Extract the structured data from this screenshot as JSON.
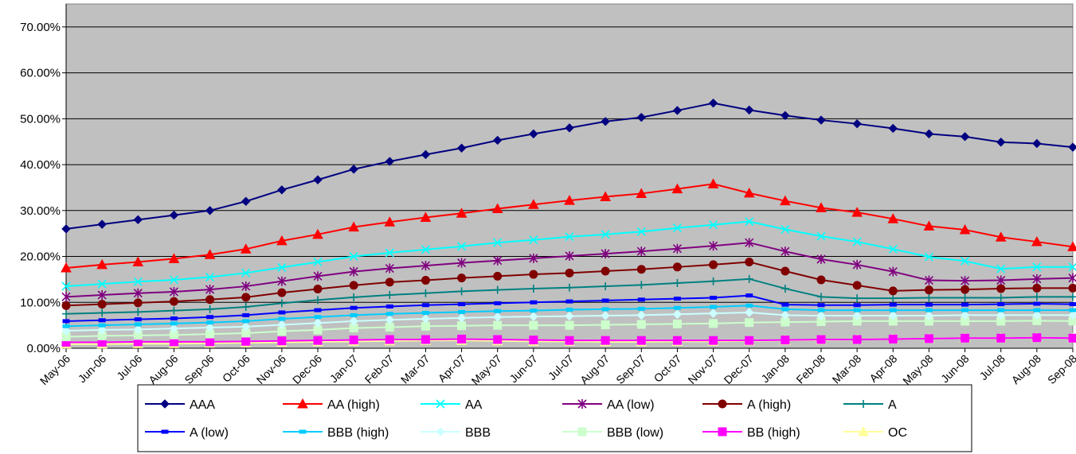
{
  "chart_data": {
    "type": "line",
    "title": "",
    "xlabel": "",
    "ylabel": "",
    "ylim": [
      0,
      0.75
    ],
    "y_tick_values": [
      0,
      0.1,
      0.2,
      0.3,
      0.4,
      0.5,
      0.6,
      0.7
    ],
    "y_tick_labels": [
      "0.00%",
      "10.00%",
      "20.00%",
      "30.00%",
      "40.00%",
      "50.00%",
      "60.00%",
      "70.00%"
    ],
    "grid": "horizontal",
    "plot_background": "#c0c0c0",
    "legend_position": "bottom",
    "categories": [
      "May-06",
      "Jun-06",
      "Jul-06",
      "Aug-06",
      "Sep-06",
      "Oct-06",
      "Nov-06",
      "Dec-06",
      "Jan-07",
      "Feb-07",
      "Mar-07",
      "Apr-07",
      "May-07",
      "Jun-07",
      "Jul-07",
      "Aug-07",
      "Sep-07",
      "Oct-07",
      "Nov-07",
      "Dec-07",
      "Jan-08",
      "Feb-08",
      "Mar-08",
      "Apr-08",
      "May-08",
      "Jun-08",
      "Jul-08",
      "Aug-08",
      "Sep-08"
    ],
    "series": [
      {
        "name": "AAA",
        "color": "#000080",
        "marker": "diamond",
        "values": [
          0.26,
          0.27,
          0.28,
          0.29,
          0.3,
          0.32,
          0.345,
          0.367,
          0.39,
          0.407,
          0.422,
          0.436,
          0.453,
          0.467,
          0.48,
          0.494,
          0.503,
          0.518,
          0.534,
          0.519,
          0.507,
          0.497,
          0.489,
          0.479,
          0.467,
          0.461,
          0.449,
          0.446,
          0.438
        ]
      },
      {
        "name": "AA (high)",
        "color": "#ff0000",
        "marker": "triangle",
        "values": [
          0.175,
          0.182,
          0.188,
          0.195,
          0.204,
          0.216,
          0.234,
          0.248,
          0.264,
          0.275,
          0.285,
          0.294,
          0.304,
          0.313,
          0.322,
          0.33,
          0.337,
          0.347,
          0.358,
          0.338,
          0.321,
          0.306,
          0.296,
          0.282,
          0.266,
          0.258,
          0.242,
          0.232,
          0.221
        ]
      },
      {
        "name": "AA",
        "color": "#00ffff",
        "marker": "x",
        "values": [
          0.135,
          0.14,
          0.145,
          0.149,
          0.155,
          0.164,
          0.176,
          0.188,
          0.2,
          0.208,
          0.215,
          0.222,
          0.23,
          0.236,
          0.243,
          0.248,
          0.254,
          0.262,
          0.269,
          0.276,
          0.259,
          0.244,
          0.232,
          0.216,
          0.199,
          0.19,
          0.173,
          0.177,
          0.177
        ]
      },
      {
        "name": "AA (low)",
        "color": "#800080",
        "marker": "star",
        "values": [
          0.112,
          0.116,
          0.12,
          0.123,
          0.128,
          0.135,
          0.146,
          0.157,
          0.167,
          0.174,
          0.18,
          0.186,
          0.191,
          0.196,
          0.201,
          0.206,
          0.211,
          0.217,
          0.223,
          0.23,
          0.211,
          0.194,
          0.182,
          0.167,
          0.148,
          0.147,
          0.148,
          0.151,
          0.153
        ]
      },
      {
        "name": "A (high)",
        "color": "#800000",
        "marker": "circle",
        "values": [
          0.093,
          0.096,
          0.099,
          0.102,
          0.106,
          0.111,
          0.121,
          0.129,
          0.137,
          0.144,
          0.148,
          0.153,
          0.157,
          0.161,
          0.164,
          0.168,
          0.172,
          0.177,
          0.182,
          0.188,
          0.168,
          0.149,
          0.137,
          0.125,
          0.127,
          0.128,
          0.13,
          0.131,
          0.131
        ]
      },
      {
        "name": "A",
        "color": "#008080",
        "marker": "plus",
        "values": [
          0.075,
          0.077,
          0.079,
          0.082,
          0.085,
          0.09,
          0.098,
          0.105,
          0.111,
          0.116,
          0.12,
          0.124,
          0.127,
          0.13,
          0.132,
          0.135,
          0.138,
          0.142,
          0.146,
          0.151,
          0.13,
          0.112,
          0.109,
          0.109,
          0.11,
          0.11,
          0.11,
          0.112,
          0.112
        ]
      },
      {
        "name": "A (low)",
        "color": "#0000ff",
        "marker": "dash",
        "values": [
          0.059,
          0.061,
          0.063,
          0.065,
          0.068,
          0.072,
          0.078,
          0.083,
          0.088,
          0.091,
          0.094,
          0.096,
          0.098,
          0.1,
          0.102,
          0.104,
          0.106,
          0.108,
          0.11,
          0.115,
          0.095,
          0.094,
          0.094,
          0.095,
          0.095,
          0.095,
          0.096,
          0.097,
          0.096
        ]
      },
      {
        "name": "BBB (high)",
        "color": "#00ccff",
        "marker": "dash",
        "values": [
          0.048,
          0.05,
          0.052,
          0.054,
          0.056,
          0.059,
          0.064,
          0.068,
          0.072,
          0.075,
          0.077,
          0.079,
          0.081,
          0.082,
          0.084,
          0.085,
          0.086,
          0.088,
          0.09,
          0.093,
          0.085,
          0.083,
          0.083,
          0.083,
          0.083,
          0.083,
          0.083,
          0.083,
          0.083
        ]
      },
      {
        "name": "BBB",
        "color": "#ccffff",
        "marker": "diamond",
        "values": [
          0.038,
          0.04,
          0.041,
          0.043,
          0.045,
          0.047,
          0.051,
          0.055,
          0.059,
          0.062,
          0.064,
          0.066,
          0.068,
          0.069,
          0.07,
          0.071,
          0.072,
          0.074,
          0.076,
          0.078,
          0.072,
          0.071,
          0.071,
          0.071,
          0.071,
          0.072,
          0.072,
          0.072,
          0.072
        ]
      },
      {
        "name": "BBB (low)",
        "color": "#ccffcc",
        "marker": "square",
        "values": [
          0.025,
          0.027,
          0.028,
          0.029,
          0.031,
          0.033,
          0.037,
          0.04,
          0.044,
          0.046,
          0.048,
          0.049,
          0.05,
          0.05,
          0.05,
          0.051,
          0.052,
          0.053,
          0.054,
          0.056,
          0.057,
          0.058,
          0.059,
          0.059,
          0.059,
          0.059,
          0.059,
          0.06,
          0.059
        ]
      },
      {
        "name": "BB (high)",
        "color": "#ff00ff",
        "marker": "square",
        "values": [
          0.013,
          0.013,
          0.014,
          0.014,
          0.014,
          0.015,
          0.016,
          0.017,
          0.018,
          0.019,
          0.019,
          0.02,
          0.019,
          0.018,
          0.017,
          0.017,
          0.017,
          0.017,
          0.017,
          0.017,
          0.018,
          0.019,
          0.019,
          0.02,
          0.021,
          0.022,
          0.022,
          0.023,
          0.022
        ]
      },
      {
        "name": "OC",
        "color": "#ffff99",
        "marker": "triangle",
        "values": [
          0.009,
          0.009,
          0.01,
          0.01,
          0.011,
          0.012,
          0.013,
          0.014,
          0.015,
          0.016,
          0.017,
          0.017,
          0.016,
          0.015,
          0.015,
          0.014,
          0.014,
          0.015,
          0.015,
          0.016,
          0.017,
          0.018,
          0.019,
          0.02,
          0.021,
          0.022,
          0.022,
          0.023,
          0.022
        ]
      }
    ]
  }
}
